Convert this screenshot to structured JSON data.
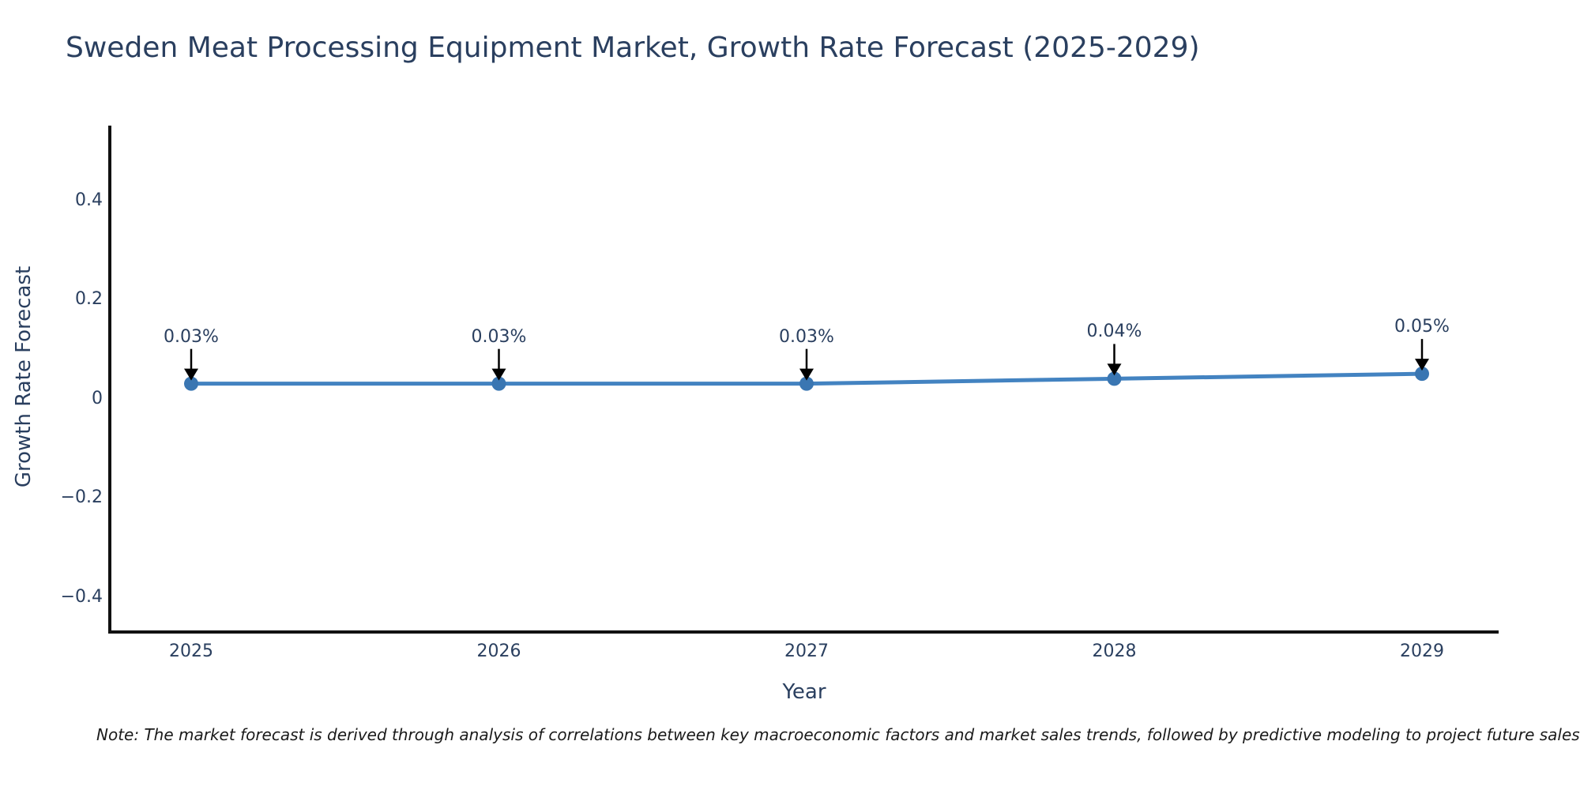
{
  "title": "Sweden Meat Processing Equipment Market, Growth Rate Forecast (2025-2029)",
  "footnote": "Note: The market forecast is derived through analysis of correlations between key macroeconomic factors and market sales trends, followed by predictive modeling to project future sales",
  "chart_data": {
    "type": "line",
    "x": [
      2025,
      2026,
      2027,
      2028,
      2029
    ],
    "series": [
      {
        "name": "Growth Rate Forecast",
        "values": [
          0.03,
          0.03,
          0.03,
          0.04,
          0.05
        ],
        "point_labels": [
          "0.03%",
          "0.03%",
          "0.03%",
          "0.04%",
          "0.05%"
        ]
      }
    ],
    "xlabel": "Year",
    "ylabel": "Growth Rate Forecast",
    "ylim": [
      -0.475,
      0.55
    ],
    "xticks": [
      "2025",
      "2026",
      "2027",
      "2028",
      "2029"
    ],
    "yticks": [
      {
        "label": "0.4",
        "value": 0.4
      },
      {
        "label": "0.2",
        "value": 0.2
      },
      {
        "label": "0",
        "value": 0.0
      },
      {
        "label": "−0.2",
        "value": -0.2
      },
      {
        "label": "−0.4",
        "value": -0.4
      }
    ],
    "grid": false,
    "legend": "none",
    "annotation_style": "down-arrow",
    "colors": {
      "line": "#4383c1",
      "marker": "#3a76b2",
      "axis_line": "#111111",
      "text": "#2a3f5f",
      "arrow": "#000000",
      "background": "#ffffff"
    }
  }
}
